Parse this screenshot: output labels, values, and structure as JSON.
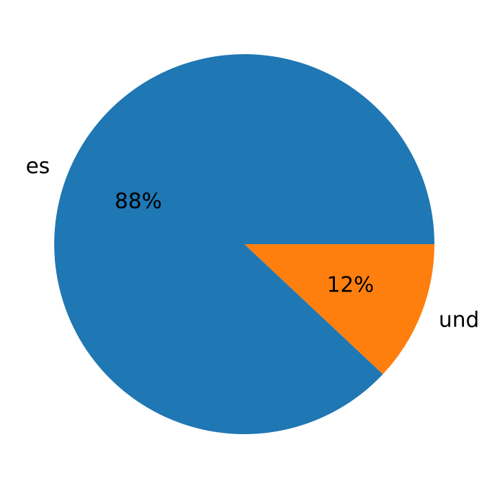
{
  "chart_data": {
    "type": "pie",
    "categories": [
      "es",
      "und"
    ],
    "values": [
      88,
      12
    ],
    "value_labels": [
      "88%",
      "12%"
    ],
    "colors": [
      "#1f77b4",
      "#ff7f0e"
    ]
  }
}
